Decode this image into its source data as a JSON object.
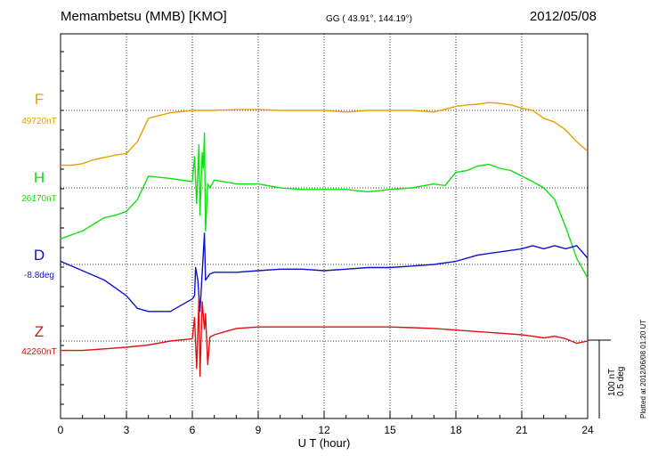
{
  "header": {
    "station": "Memambetsu (MMB)  [KMO]",
    "coords": "GG ( 43.91°, 144.19°)",
    "date": "2012/05/08"
  },
  "plotted_note": "Plotted at 2012/06/08 01:20 UT",
  "chart_data": {
    "type": "line",
    "xlabel": "U T (hour)",
    "xlim": [
      0,
      24
    ],
    "xticks": [
      0,
      3,
      6,
      9,
      12,
      15,
      18,
      21,
      24
    ],
    "grid": true,
    "scale_bar": [
      "100 nT",
      "0.5 deg"
    ],
    "series": [
      {
        "name": "F",
        "baseline": "49720nT",
        "color": "#e8a000",
        "unit": "nT",
        "reference": 49720,
        "x": [
          0,
          0.5,
          1,
          1.5,
          2,
          2.5,
          3,
          3.5,
          4,
          5,
          6,
          7,
          8,
          9,
          10,
          11,
          12,
          13,
          14,
          15,
          16,
          17,
          18,
          18.5,
          19,
          19.5,
          20,
          20.5,
          21,
          21.5,
          22,
          22.5,
          23,
          23.5,
          24
        ],
        "values": [
          -70,
          -70,
          -68,
          -63,
          -60,
          -57,
          -55,
          -40,
          -10,
          -3,
          0,
          0,
          1,
          1,
          0,
          0,
          0,
          -2,
          0,
          0,
          0,
          -2,
          5,
          7,
          8,
          10,
          9,
          7,
          3,
          0,
          -10,
          -15,
          -25,
          -40,
          -52
        ]
      },
      {
        "name": "H",
        "baseline": "26170nT",
        "color": "#10e010",
        "unit": "nT",
        "reference": 26170,
        "x": [
          0,
          1,
          2,
          2.5,
          3,
          3.5,
          4,
          5,
          6,
          6.1,
          6.2,
          6.3,
          6.35,
          6.45,
          6.5,
          6.55,
          6.6,
          6.7,
          6.8,
          7,
          8,
          9,
          10,
          11,
          12,
          13,
          14,
          15,
          16,
          17,
          17.5,
          18,
          18.5,
          19,
          19.5,
          20,
          20.5,
          21,
          21.5,
          22,
          22.5,
          23,
          23.5,
          24
        ],
        "values": [
          -65,
          -55,
          -38,
          -35,
          -30,
          -15,
          15,
          12,
          8,
          40,
          -20,
          55,
          -35,
          45,
          25,
          70,
          -55,
          5,
          0,
          10,
          5,
          5,
          0,
          -2,
          -2,
          -2,
          -5,
          -2,
          0,
          5,
          3,
          20,
          22,
          28,
          30,
          25,
          22,
          15,
          8,
          0,
          -15,
          -50,
          -90,
          -115
        ]
      },
      {
        "name": "D",
        "baseline": "-8.8deg",
        "color": "#1010d0",
        "unit": "deg",
        "reference": -8.8,
        "x": [
          0,
          1,
          2,
          3,
          3.5,
          4,
          5,
          6,
          6.1,
          6.15,
          6.25,
          6.35,
          6.45,
          6.55,
          6.6,
          6.7,
          6.8,
          7,
          8,
          9,
          10,
          11,
          12,
          13,
          14,
          15,
          16,
          17,
          18,
          19,
          20,
          21,
          21.5,
          22,
          22.5,
          23,
          23.5,
          24
        ],
        "values": [
          0.02,
          -0.04,
          -0.1,
          -0.2,
          -0.28,
          -0.3,
          -0.3,
          -0.22,
          -0.2,
          -0.02,
          -0.1,
          -0.3,
          -0.05,
          0.2,
          -0.1,
          -0.08,
          -0.06,
          -0.05,
          -0.05,
          -0.04,
          -0.03,
          -0.03,
          -0.04,
          -0.03,
          -0.02,
          -0.02,
          -0.01,
          0,
          0.02,
          0.06,
          0.08,
          0.1,
          0.12,
          0.1,
          0.12,
          0.1,
          0.12,
          0.04
        ]
      },
      {
        "name": "Z",
        "baseline": "42260nT",
        "color": "#e01010",
        "unit": "nT",
        "reference": 42260,
        "x": [
          0,
          1,
          2,
          3,
          4,
          5,
          6,
          6.1,
          6.2,
          6.3,
          6.35,
          6.45,
          6.55,
          6.6,
          6.7,
          6.8,
          7,
          7.5,
          8,
          9,
          10,
          11,
          12,
          13,
          14,
          15,
          16,
          17,
          18,
          19,
          20,
          21,
          21.5,
          22,
          22.5,
          23,
          23.5,
          24
        ],
        "values": [
          -12,
          -12,
          -10,
          -8,
          -5,
          0,
          3,
          30,
          -35,
          55,
          -45,
          50,
          15,
          35,
          -30,
          5,
          8,
          12,
          16,
          18,
          18,
          18,
          18,
          18,
          18,
          18,
          17,
          16,
          14,
          12,
          10,
          8,
          6,
          4,
          6,
          3,
          -3,
          0
        ]
      }
    ]
  }
}
